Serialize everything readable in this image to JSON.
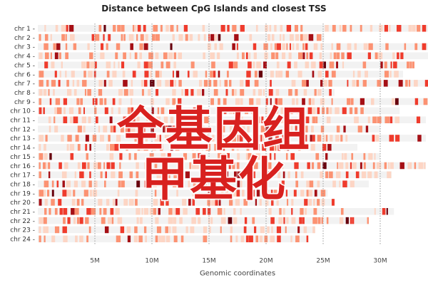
{
  "chart_data": {
    "type": "heatmap",
    "title": "Distance between CpG Islands and closest TSS",
    "xlabel": "Genomic coordinates",
    "ylabel": "",
    "xlim": [
      0,
      34.5
    ],
    "x_unit": "M",
    "x_ticks": [
      "5M",
      "10M",
      "15M",
      "20M",
      "25M",
      "30M"
    ],
    "x_tick_values": [
      5,
      10,
      15,
      20,
      25,
      30
    ],
    "grid": "vertical dotted",
    "color_scale": [
      "#f2f2f2",
      "#fdd5c4",
      "#fc9272",
      "#ef3b2c",
      "#a50f15",
      "#67000d"
    ],
    "categories": [
      "chr 1",
      "chr 2",
      "chr 3",
      "chr 4",
      "chr 5",
      "chr 6",
      "chr 7",
      "chr 8",
      "chr 9",
      "chr 10",
      "chr 11",
      "chr 12",
      "chr 13",
      "chr 14",
      "chr 15",
      "chr 16",
      "chr 17",
      "chr 18",
      "chr 19",
      "chr 20",
      "chr 21",
      "chr 22",
      "chr 23",
      "chr 24"
    ],
    "lengths_M": [
      34.5,
      25.1,
      34.5,
      34.5,
      33.0,
      32.0,
      34.5,
      26.0,
      34.5,
      31.7,
      34.0,
      30.0,
      34.0,
      28.0,
      30.0,
      34.0,
      31.0,
      29.0,
      25.4,
      26.0,
      31.2,
      29.0,
      24.3,
      23.7
    ]
  },
  "overlay": {
    "line1": "全基因组",
    "line2": "甲基化",
    "color": "#d8211f"
  }
}
